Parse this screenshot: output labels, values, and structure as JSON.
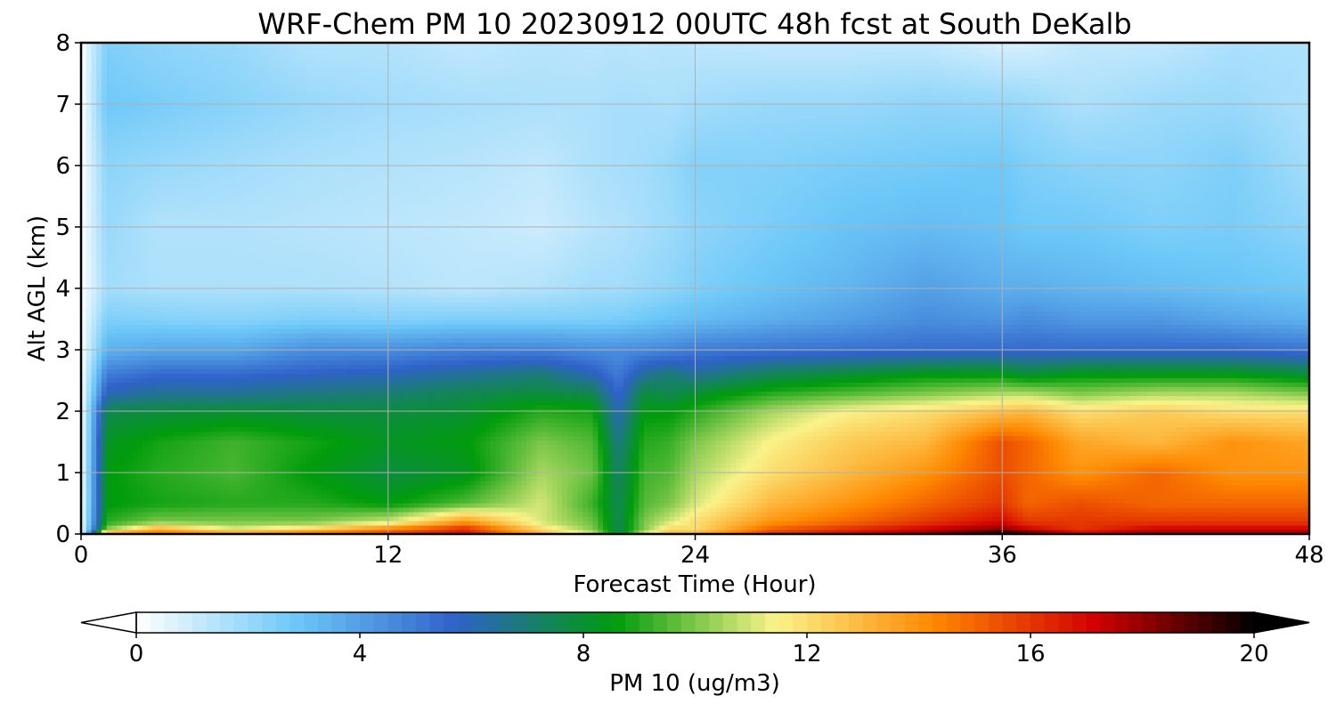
{
  "chart_data": {
    "type": "heatmap",
    "title": "WRF-Chem PM 10  20230912 00UTC 48h fcst at South DeKalb",
    "xlabel": "Forecast Time (Hour)",
    "ylabel": "Alt AGL (km)",
    "xlim": [
      0,
      48
    ],
    "ylim": [
      0,
      8
    ],
    "xticks": [
      0,
      12,
      24,
      36,
      48
    ],
    "yticks": [
      0,
      1,
      2,
      3,
      4,
      5,
      6,
      7,
      8
    ],
    "grid": true,
    "colorbar": {
      "label": "PM 10  (ug/m3)",
      "orientation": "horizontal",
      "placement": "bottom",
      "ticks": [
        0,
        4,
        8,
        12,
        16,
        20
      ],
      "range": [
        0,
        20
      ],
      "extend": "both",
      "colors": [
        "#ffffff",
        "#6cc8f8",
        "#2f62c9",
        "#009c0b",
        "#f9f38a",
        "#ff8800",
        "#d20000",
        "#000000"
      ]
    },
    "x": [
      0,
      1,
      3,
      6,
      9,
      12,
      15,
      18,
      20,
      21,
      22,
      23,
      24,
      27,
      30,
      33,
      36,
      37,
      39,
      42,
      45,
      48
    ],
    "y": [
      0,
      0.1,
      0.2,
      0.5,
      1,
      1.5,
      2,
      2.3,
      2.6,
      3,
      3.5,
      4,
      5,
      6,
      7,
      8
    ],
    "z": [
      [
        0,
        14,
        15,
        14,
        15,
        16,
        17,
        13,
        11,
        7.5,
        11,
        13,
        13,
        16,
        17,
        18,
        20,
        19,
        17,
        18,
        18,
        18
      ],
      [
        0,
        10,
        13,
        11,
        12,
        14,
        16,
        12,
        10,
        7.5,
        10,
        12,
        12,
        15,
        16,
        17,
        18,
        17,
        16,
        17,
        17,
        17
      ],
      [
        0,
        9,
        10,
        10,
        10,
        11,
        14,
        11,
        9.8,
        7.5,
        10,
        11,
        12,
        14,
        15,
        16,
        17,
        16,
        16,
        16,
        16,
        16
      ],
      [
        0,
        8.5,
        8.8,
        9,
        9,
        8.5,
        9.5,
        11,
        9.2,
        7.5,
        9.5,
        10,
        11,
        13,
        14,
        15,
        16,
        15,
        15.5,
        15,
        15,
        15
      ],
      [
        0,
        8.5,
        9,
        9.4,
        8.5,
        7.8,
        8.2,
        10.5,
        9.8,
        7.2,
        9.3,
        9.5,
        10.5,
        12,
        13,
        14,
        15.5,
        15,
        14,
        15,
        14,
        14
      ],
      [
        0,
        8.2,
        8.8,
        9.3,
        8.8,
        8.2,
        8.5,
        10,
        9.5,
        6.8,
        9,
        9.2,
        10,
        11.5,
        12.5,
        13,
        15.5,
        15,
        13.5,
        13,
        14,
        13.5
      ],
      [
        0,
        7.6,
        7.8,
        8,
        7.8,
        7.8,
        8,
        9,
        8.8,
        6,
        8.5,
        8.5,
        9,
        10.5,
        11.5,
        12,
        12.8,
        13,
        12,
        12.5,
        12,
        12
      ],
      [
        0,
        6,
        6.5,
        6.5,
        6.8,
        7,
        7.5,
        7.8,
        7.5,
        5.5,
        7.8,
        7.5,
        8,
        9,
        9.5,
        10,
        10.5,
        10.5,
        10,
        10.5,
        10.5,
        10
      ],
      [
        0,
        5,
        5.5,
        5.5,
        5.8,
        6,
        6.5,
        7,
        6,
        5,
        6.5,
        7,
        6.5,
        7.5,
        8,
        8.5,
        8.5,
        8,
        8.5,
        8.5,
        8.5,
        8
      ],
      [
        0,
        3.5,
        3.8,
        3.8,
        4.5,
        4.5,
        4.8,
        4.8,
        4.5,
        4.5,
        4.6,
        4.7,
        5,
        5.2,
        5.3,
        5.4,
        5.5,
        5.5,
        5.5,
        5.5,
        5.5,
        5.2
      ],
      [
        0,
        2.5,
        2.4,
        2.3,
        2.5,
        2.4,
        2.5,
        2.5,
        2.5,
        2.6,
        2.8,
        3,
        3.2,
        3.6,
        4,
        4.5,
        4.3,
        4.5,
        4.2,
        4.2,
        3.8,
        3.5
      ],
      [
        0,
        1.8,
        1.6,
        1.6,
        1.6,
        1.5,
        1.3,
        1.5,
        1.8,
        1.8,
        2,
        2.2,
        2.5,
        3,
        3.4,
        4,
        3.6,
        3.6,
        3.4,
        3.2,
        3,
        2.8
      ],
      [
        0,
        2,
        1.5,
        1.5,
        1.4,
        1.3,
        1.2,
        1,
        1.4,
        1.5,
        1.7,
        1.9,
        2.2,
        2.6,
        3,
        3.2,
        3,
        2.8,
        2.8,
        2.5,
        2.6,
        2.2
      ],
      [
        0,
        2.2,
        2,
        1.8,
        1.6,
        1.5,
        1.4,
        1.2,
        1.6,
        1.7,
        1.8,
        2,
        2.4,
        2.4,
        2.6,
        2.7,
        2.8,
        2.5,
        2.3,
        2.2,
        2.5,
        1.8
      ],
      [
        0,
        2.8,
        2.6,
        2.3,
        2,
        1.8,
        1.7,
        1.6,
        1.6,
        1.7,
        1.7,
        1.6,
        1.8,
        2,
        2,
        2.2,
        2.1,
        2,
        1.6,
        1.9,
        2,
        1.6
      ],
      [
        0,
        2.5,
        2.2,
        2,
        1.5,
        1.5,
        1.2,
        1.4,
        1.3,
        1.4,
        1.3,
        1.4,
        1.3,
        1.2,
        1.2,
        1.2,
        0.8,
        0.8,
        1.2,
        1.2,
        1.6,
        1.6
      ]
    ]
  }
}
